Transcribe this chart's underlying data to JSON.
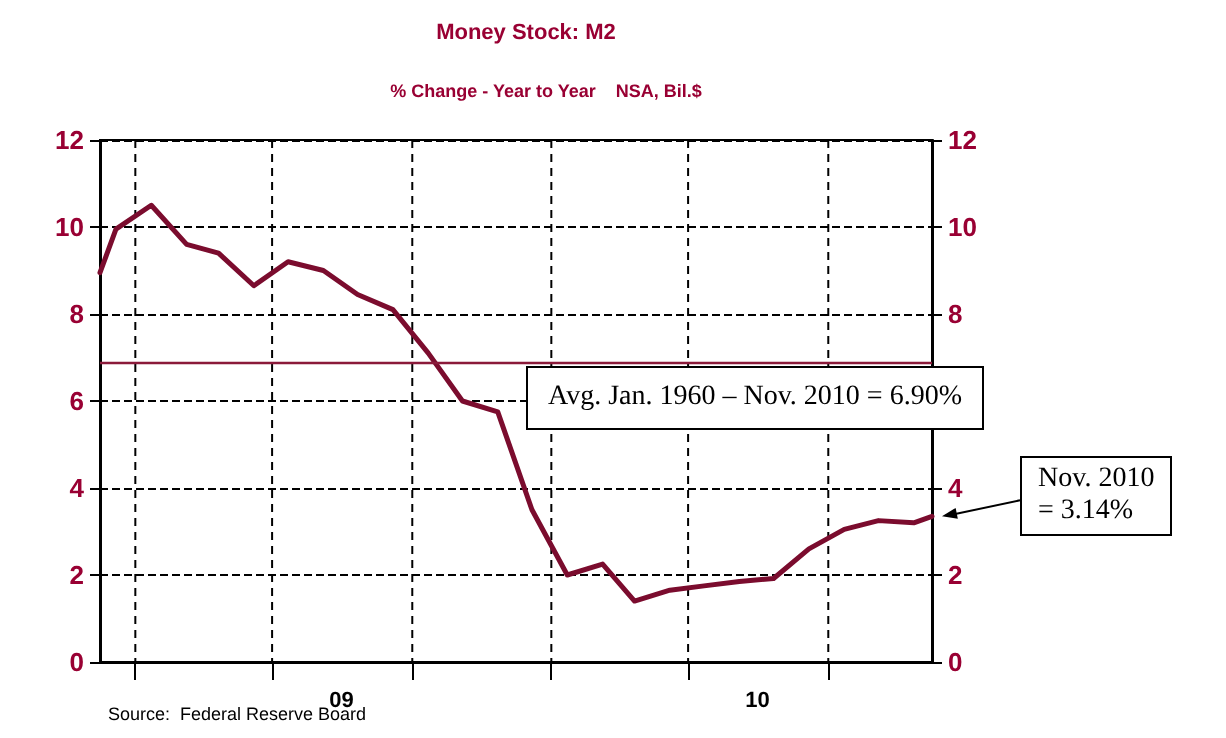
{
  "chart_data": {
    "type": "line",
    "title": "Money Stock: M2",
    "subtitle": "% Change - Year to Year    NSA, Bil.$",
    "x": [
      "2008-12-01",
      "2008-12-15",
      "2009-01-15",
      "2009-02-15",
      "2009-03-15",
      "2009-04-15",
      "2009-05-15",
      "2009-06-15",
      "2009-07-15",
      "2009-08-15",
      "2009-09-15",
      "2009-10-15",
      "2009-11-15",
      "2009-12-15",
      "2010-01-15",
      "2010-02-15",
      "2010-03-15",
      "2010-04-15",
      "2010-05-15",
      "2010-06-15",
      "2010-07-15",
      "2010-08-15",
      "2010-09-15",
      "2010-10-15",
      "2010-11-15",
      "2010-12-01"
    ],
    "series": [
      {
        "color": "#7b0c2e",
        "values": [
          8.95,
          9.95,
          10.5,
          9.6,
          9.4,
          8.65,
          9.2,
          9.0,
          8.45,
          8.1,
          7.1,
          6.0,
          5.75,
          3.5,
          2.0,
          2.25,
          1.4,
          1.65,
          1.75,
          1.85,
          1.92,
          2.6,
          3.05,
          3.25,
          3.2,
          3.35
        ]
      }
    ],
    "xlim": [
      "2008-12-01",
      "2010-12-01"
    ],
    "xticks": [
      {
        "value": "2009-01-01",
        "label": null
      },
      {
        "value": "2009-05-01",
        "label": null
      },
      {
        "value": "2009-07-01",
        "label": "09"
      },
      {
        "value": "2009-09-01",
        "label": null
      },
      {
        "value": "2010-01-01",
        "label": null
      },
      {
        "value": "2010-05-01",
        "label": null
      },
      {
        "value": "2010-07-01",
        "label": "10"
      },
      {
        "value": "2010-09-01",
        "label": null
      }
    ],
    "ylim": [
      0,
      12
    ],
    "yticks": [
      0,
      2,
      4,
      6,
      8,
      10,
      12
    ],
    "y2lim": [
      0,
      12
    ],
    "y2ticks": [
      0,
      2,
      4,
      {
        "value": 6,
        "label": null
      },
      8,
      10,
      12
    ],
    "grid": true,
    "marker": "none",
    "line_style": "solid",
    "ref_lines": [
      {
        "axis": "y",
        "value": 6.9,
        "label": "Avg. Jan. 1960 – Nov. 2010 = 6.90%",
        "color": "#8b1a3a",
        "line_style": "solid"
      }
    ],
    "annotations": [
      "Nov. 2010\n= 3.14%",
      "Source:  Federal Reserve Board"
    ]
  }
}
